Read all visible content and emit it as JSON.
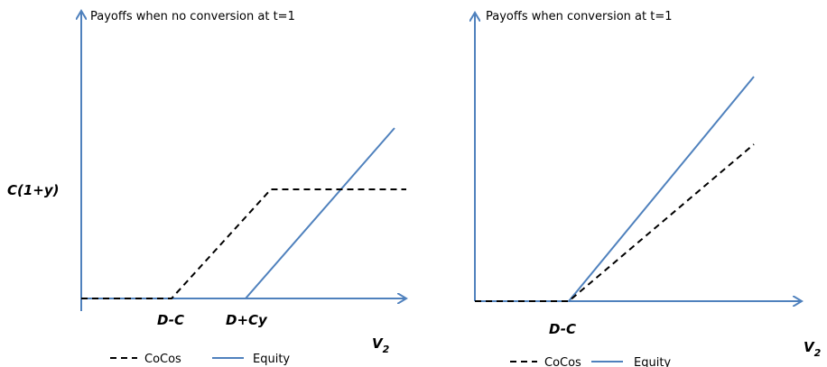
{
  "panels": [
    {
      "title": "Payoffs when no conversion at t=1",
      "y_label": "C(1+y)",
      "x_ticks": [
        "D-C",
        "D+Cy"
      ],
      "x_label": "V",
      "x_label_sub": "2",
      "legend": [
        "CoCos",
        "Equity"
      ]
    },
    {
      "title": "Payoffs when conversion at t=1",
      "x_ticks": [
        "D-C"
      ],
      "x_label": "V",
      "x_label_sub": "2",
      "legend": [
        "CoCos",
        "Equity"
      ]
    }
  ]
}
